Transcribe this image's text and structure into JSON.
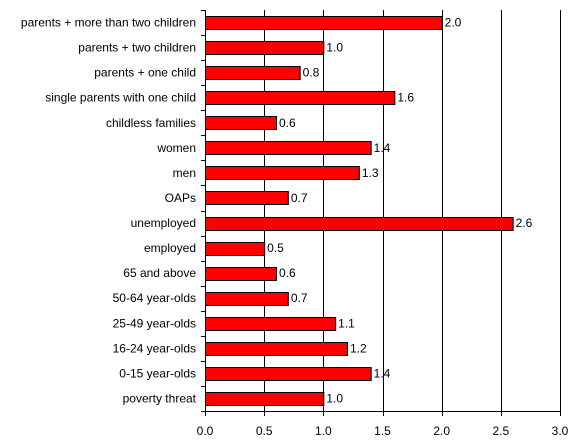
{
  "chart_data": {
    "type": "bar",
    "orientation": "horizontal",
    "title": "",
    "xlabel": "",
    "ylabel": "",
    "xlim": [
      0,
      3
    ],
    "x_ticks": [
      0.0,
      0.5,
      1.0,
      1.5,
      2.0,
      2.5,
      3.0
    ],
    "x_tick_labels": [
      "0.0",
      "0.5",
      "1.0",
      "1.5",
      "2.0",
      "2.5",
      "3.0"
    ],
    "categories": [
      "parents + more than two children",
      "parents + two children",
      "parents + one child",
      "single parents with one child",
      "childless families",
      "women",
      "men",
      "OAPs",
      "unemployed",
      "employed",
      "65 and above",
      "50-64 year-olds",
      "25-49 year-olds",
      "16-24 year-olds",
      "0-15 year-olds",
      "poverty threat"
    ],
    "values": [
      2.0,
      1.0,
      0.8,
      1.6,
      0.6,
      1.4,
      1.3,
      0.7,
      2.6,
      0.5,
      0.6,
      0.7,
      1.1,
      1.2,
      1.4,
      1.0
    ],
    "data_labels": [
      "2.0",
      "1.0",
      "0.8",
      "1.6",
      "0.6",
      "1.4",
      "1.3",
      "0.7",
      "2.6",
      "0.5",
      "0.6",
      "0.7",
      "1.1",
      "1.2",
      "1.4",
      "1.0"
    ],
    "grid": "vertical",
    "legend": "none",
    "colors": {
      "bar_fill": "#ff0000",
      "bar_stroke": "#000000",
      "grid": "#000000",
      "axis": "#000000",
      "text": "#000000",
      "background": "#ffffff"
    }
  }
}
